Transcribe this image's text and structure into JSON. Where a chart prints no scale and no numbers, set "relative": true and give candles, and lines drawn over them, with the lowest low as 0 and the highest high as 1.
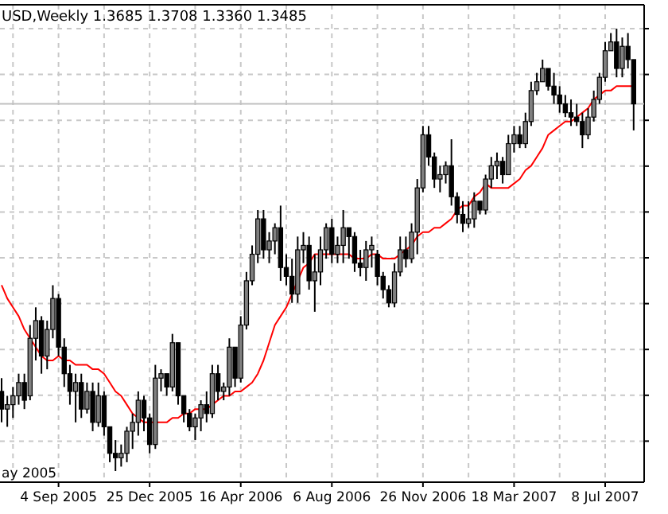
{
  "chart_data": {
    "type": "candlestick",
    "title": "USD,Weekly  1.3685 1.3708 1.3360 1.3485",
    "relative": true,
    "grid": true,
    "tick_labels": "x",
    "annotations": [
      "ay 2005"
    ],
    "categories": [
      null,
      null,
      null,
      null,
      null,
      null,
      null,
      null,
      null,
      null,
      "4 Sep 2005",
      null,
      null,
      null,
      null,
      null,
      null,
      null,
      null,
      null,
      null,
      null,
      null,
      null,
      null,
      null,
      "25 Dec 2005",
      null,
      null,
      null,
      null,
      null,
      null,
      null,
      null,
      null,
      null,
      null,
      null,
      null,
      null,
      null,
      "16 Apr 2006",
      null,
      null,
      null,
      null,
      null,
      null,
      null,
      null,
      null,
      null,
      null,
      null,
      null,
      null,
      null,
      "6 Aug 2006",
      null,
      null,
      null,
      null,
      null,
      null,
      null,
      null,
      null,
      null,
      null,
      null,
      null,
      null,
      null,
      "26 Nov 2006",
      null,
      null,
      null,
      null,
      null,
      null,
      null,
      null,
      null,
      null,
      null,
      null,
      null,
      null,
      null,
      "18 Mar 2007",
      null,
      null,
      null,
      null,
      null,
      null,
      null,
      null,
      null,
      null,
      null,
      null,
      null,
      null,
      null,
      "8 Jul 2007",
      null,
      null,
      null,
      null,
      null
    ],
    "ohlc": [
      [
        0.18,
        0.21,
        0.11,
        0.14
      ],
      [
        0.14,
        0.17,
        0.1,
        0.15
      ],
      [
        0.15,
        0.19,
        0.12,
        0.17
      ],
      [
        0.17,
        0.22,
        0.15,
        0.2
      ],
      [
        0.2,
        0.22,
        0.14,
        0.16
      ],
      [
        0.17,
        0.33,
        0.16,
        0.3
      ],
      [
        0.3,
        0.37,
        0.25,
        0.34
      ],
      [
        0.34,
        0.35,
        0.22,
        0.26
      ],
      [
        0.26,
        0.34,
        0.23,
        0.32
      ],
      [
        0.32,
        0.42,
        0.3,
        0.39
      ],
      [
        0.39,
        0.4,
        0.26,
        0.28
      ],
      [
        0.28,
        0.3,
        0.19,
        0.22
      ],
      [
        0.22,
        0.24,
        0.15,
        0.18
      ],
      [
        0.18,
        0.22,
        0.11,
        0.2
      ],
      [
        0.2,
        0.22,
        0.12,
        0.14
      ],
      [
        0.14,
        0.2,
        0.13,
        0.18
      ],
      [
        0.18,
        0.2,
        0.09,
        0.11
      ],
      [
        0.11,
        0.2,
        0.1,
        0.17
      ],
      [
        0.17,
        0.18,
        0.08,
        0.1
      ],
      [
        0.1,
        0.1,
        0.02,
        0.04
      ],
      [
        0.04,
        0.07,
        0.0,
        0.03
      ],
      [
        0.03,
        0.06,
        0.01,
        0.04
      ],
      [
        0.04,
        0.1,
        0.02,
        0.09
      ],
      [
        0.09,
        0.13,
        0.05,
        0.11
      ],
      [
        0.11,
        0.18,
        0.08,
        0.16
      ],
      [
        0.16,
        0.17,
        0.09,
        0.12
      ],
      [
        0.12,
        0.13,
        0.04,
        0.06
      ],
      [
        0.06,
        0.24,
        0.05,
        0.21
      ],
      [
        0.21,
        0.23,
        0.18,
        0.22
      ],
      [
        0.22,
        0.22,
        0.17,
        0.19
      ],
      [
        0.19,
        0.31,
        0.18,
        0.29
      ],
      [
        0.29,
        0.29,
        0.15,
        0.17
      ],
      [
        0.17,
        0.17,
        0.11,
        0.13
      ],
      [
        0.13,
        0.14,
        0.09,
        0.1
      ],
      [
        0.1,
        0.13,
        0.07,
        0.12
      ],
      [
        0.12,
        0.16,
        0.09,
        0.15
      ],
      [
        0.15,
        0.18,
        0.11,
        0.13
      ],
      [
        0.13,
        0.24,
        0.12,
        0.22
      ],
      [
        0.22,
        0.24,
        0.16,
        0.18
      ],
      [
        0.18,
        0.2,
        0.16,
        0.19
      ],
      [
        0.19,
        0.3,
        0.17,
        0.28
      ],
      [
        0.28,
        0.28,
        0.19,
        0.21
      ],
      [
        0.21,
        0.35,
        0.2,
        0.33
      ],
      [
        0.33,
        0.45,
        0.32,
        0.43
      ],
      [
        0.43,
        0.51,
        0.42,
        0.49
      ],
      [
        0.49,
        0.59,
        0.47,
        0.57
      ],
      [
        0.57,
        0.59,
        0.48,
        0.5
      ],
      [
        0.5,
        0.54,
        0.47,
        0.52
      ],
      [
        0.52,
        0.56,
        0.49,
        0.55
      ],
      [
        0.55,
        0.6,
        0.43,
        0.46
      ],
      [
        0.46,
        0.49,
        0.42,
        0.44
      ],
      [
        0.44,
        0.48,
        0.38,
        0.4
      ],
      [
        0.4,
        0.53,
        0.38,
        0.5
      ],
      [
        0.5,
        0.54,
        0.47,
        0.51
      ],
      [
        0.51,
        0.53,
        0.41,
        0.43
      ],
      [
        0.43,
        0.49,
        0.36,
        0.45
      ],
      [
        0.45,
        0.53,
        0.42,
        0.5
      ],
      [
        0.5,
        0.56,
        0.48,
        0.55
      ],
      [
        0.55,
        0.57,
        0.47,
        0.49
      ],
      [
        0.49,
        0.53,
        0.47,
        0.51
      ],
      [
        0.51,
        0.59,
        0.47,
        0.55
      ],
      [
        0.55,
        0.55,
        0.48,
        0.53
      ],
      [
        0.53,
        0.54,
        0.45,
        0.47
      ],
      [
        0.47,
        0.5,
        0.44,
        0.46
      ],
      [
        0.46,
        0.52,
        0.43,
        0.5
      ],
      [
        0.5,
        0.53,
        0.46,
        0.51
      ],
      [
        0.49,
        0.5,
        0.42,
        0.44
      ],
      [
        0.44,
        0.45,
        0.39,
        0.41
      ],
      [
        0.41,
        0.42,
        0.37,
        0.38
      ],
      [
        0.38,
        0.47,
        0.37,
        0.45
      ],
      [
        0.45,
        0.53,
        0.44,
        0.5
      ],
      [
        0.5,
        0.53,
        0.46,
        0.48
      ],
      [
        0.48,
        0.56,
        0.47,
        0.54
      ],
      [
        0.54,
        0.66,
        0.49,
        0.64
      ],
      [
        0.64,
        0.78,
        0.63,
        0.76
      ],
      [
        0.76,
        0.78,
        0.69,
        0.71
      ],
      [
        0.71,
        0.72,
        0.64,
        0.66
      ],
      [
        0.66,
        0.69,
        0.63,
        0.67
      ],
      [
        0.67,
        0.7,
        0.65,
        0.69
      ],
      [
        0.69,
        0.75,
        0.6,
        0.62
      ],
      [
        0.62,
        0.63,
        0.56,
        0.58
      ],
      [
        0.58,
        0.61,
        0.54,
        0.56
      ],
      [
        0.56,
        0.61,
        0.55,
        0.57
      ],
      [
        0.57,
        0.63,
        0.55,
        0.61
      ],
      [
        0.61,
        0.61,
        0.58,
        0.59
      ],
      [
        0.59,
        0.67,
        0.58,
        0.66
      ],
      [
        0.66,
        0.71,
        0.64,
        0.69
      ],
      [
        0.69,
        0.72,
        0.66,
        0.7
      ],
      [
        0.7,
        0.71,
        0.65,
        0.67
      ],
      [
        0.67,
        0.76,
        0.67,
        0.74
      ],
      [
        0.74,
        0.78,
        0.72,
        0.76
      ],
      [
        0.76,
        0.78,
        0.73,
        0.74
      ],
      [
        0.74,
        0.81,
        0.73,
        0.79
      ],
      [
        0.79,
        0.88,
        0.78,
        0.86
      ],
      [
        0.86,
        0.9,
        0.85,
        0.88
      ],
      [
        0.88,
        0.93,
        0.88,
        0.91
      ],
      [
        0.91,
        0.91,
        0.86,
        0.87
      ],
      [
        0.87,
        0.9,
        0.83,
        0.85
      ],
      [
        0.85,
        0.87,
        0.81,
        0.83
      ],
      [
        0.83,
        0.85,
        0.8,
        0.81
      ],
      [
        0.81,
        0.84,
        0.78,
        0.8
      ],
      [
        0.8,
        0.83,
        0.78,
        0.79
      ],
      [
        0.79,
        0.81,
        0.73,
        0.76
      ],
      [
        0.76,
        0.82,
        0.75,
        0.8
      ],
      [
        0.8,
        0.86,
        0.79,
        0.84
      ],
      [
        0.84,
        0.9,
        0.83,
        0.89
      ],
      [
        0.89,
        0.97,
        0.88,
        0.95
      ],
      [
        0.95,
        0.99,
        0.95,
        0.97
      ],
      [
        0.97,
        1.0,
        0.89,
        0.91
      ],
      [
        0.91,
        0.98,
        0.89,
        0.96
      ],
      [
        0.96,
        0.99,
        0.91,
        0.93
      ],
      [
        0.93,
        0.93,
        0.77,
        0.83
      ]
    ],
    "series": [
      {
        "type": "line",
        "color": "#ff0000",
        "values": [
          0.42,
          0.39,
          0.37,
          0.35,
          0.32,
          0.3,
          0.28,
          0.26,
          0.25,
          0.25,
          0.26,
          0.25,
          0.25,
          0.24,
          0.24,
          0.24,
          0.23,
          0.23,
          0.22,
          0.2,
          0.18,
          0.17,
          0.15,
          0.13,
          0.12,
          0.11,
          0.11,
          0.11,
          0.11,
          0.11,
          0.12,
          0.12,
          0.13,
          0.13,
          0.14,
          0.14,
          0.14,
          0.15,
          0.16,
          0.17,
          0.17,
          0.18,
          0.18,
          0.19,
          0.2,
          0.22,
          0.25,
          0.29,
          0.33,
          0.35,
          0.37,
          0.4,
          0.43,
          0.46,
          0.47,
          0.49,
          0.49,
          0.49,
          0.49,
          0.49,
          0.49,
          0.49,
          0.48,
          0.48,
          0.48,
          0.49,
          0.49,
          0.48,
          0.48,
          0.48,
          0.49,
          0.5,
          0.51,
          0.53,
          0.54,
          0.54,
          0.55,
          0.55,
          0.56,
          0.57,
          0.59,
          0.6,
          0.6,
          0.62,
          0.63,
          0.65,
          0.64,
          0.64,
          0.64,
          0.64,
          0.65,
          0.66,
          0.68,
          0.69,
          0.71,
          0.73,
          0.76,
          0.77,
          0.78,
          0.79,
          0.79,
          0.8,
          0.81,
          0.82,
          0.84,
          0.85,
          0.86,
          0.86,
          0.87,
          0.87,
          0.87,
          0.87
        ]
      }
    ],
    "ref_lines": [
      {
        "axis": "y",
        "value": 0.83,
        "color": "#c0c0c0"
      }
    ]
  }
}
